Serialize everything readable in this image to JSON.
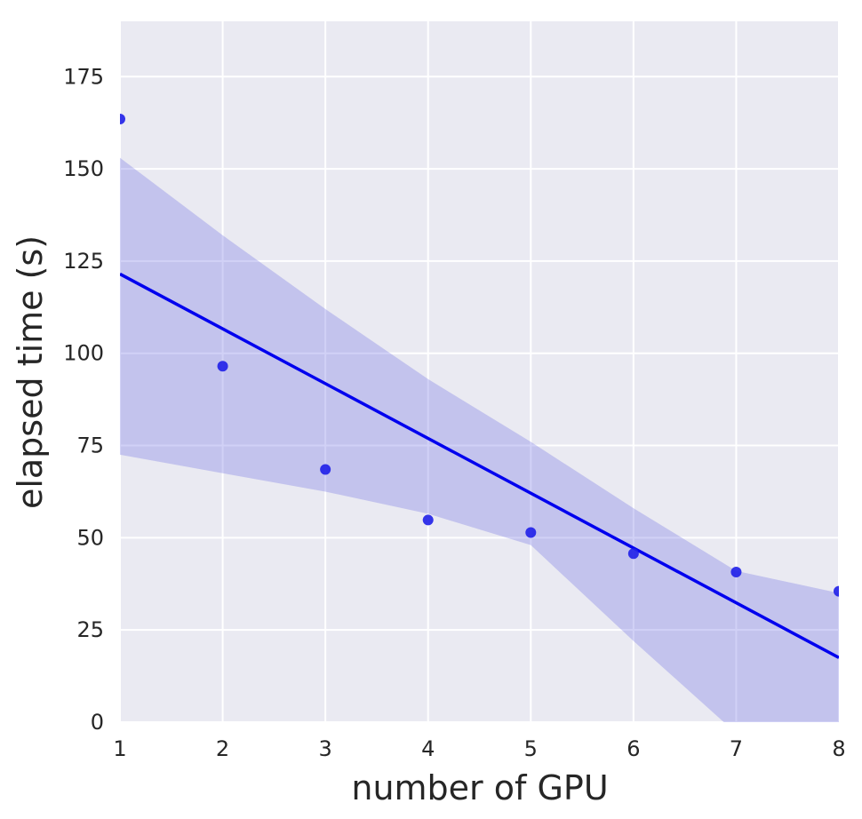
{
  "chart_data": {
    "type": "scatter",
    "title": "",
    "xlabel": "number of GPU",
    "ylabel": "elapsed time (s)",
    "xlim": [
      1,
      8
    ],
    "ylim": [
      0,
      190
    ],
    "x_ticks": [
      1,
      2,
      3,
      4,
      5,
      6,
      7,
      8
    ],
    "y_ticks": [
      0,
      25,
      50,
      75,
      100,
      125,
      150,
      175
    ],
    "grid": true,
    "legend": "none",
    "series": [
      {
        "x": [
          1,
          2,
          3,
          4,
          5,
          6,
          7,
          8
        ],
        "values": [
          163.5,
          96.5,
          68.5,
          54.8,
          51.4,
          45.7,
          40.7,
          35.5
        ],
        "color": "#1f1fe8"
      }
    ],
    "regression_line": {
      "x": [
        1,
        8
      ],
      "values": [
        121.5,
        17.5
      ],
      "color": "#0000ee"
    },
    "confidence_band": {
      "x": [
        1,
        2,
        3,
        4,
        5,
        6,
        7,
        8
      ],
      "upper": [
        153,
        132,
        112,
        93,
        76,
        58,
        41,
        35
      ],
      "lower": [
        72.5,
        67.5,
        62.5,
        56.5,
        48,
        22,
        -3,
        -15
      ],
      "color": "#7c7ce6"
    },
    "colors": {
      "background": "#eaeaf2",
      "grid": "#ffffff",
      "text": "#262626"
    }
  }
}
